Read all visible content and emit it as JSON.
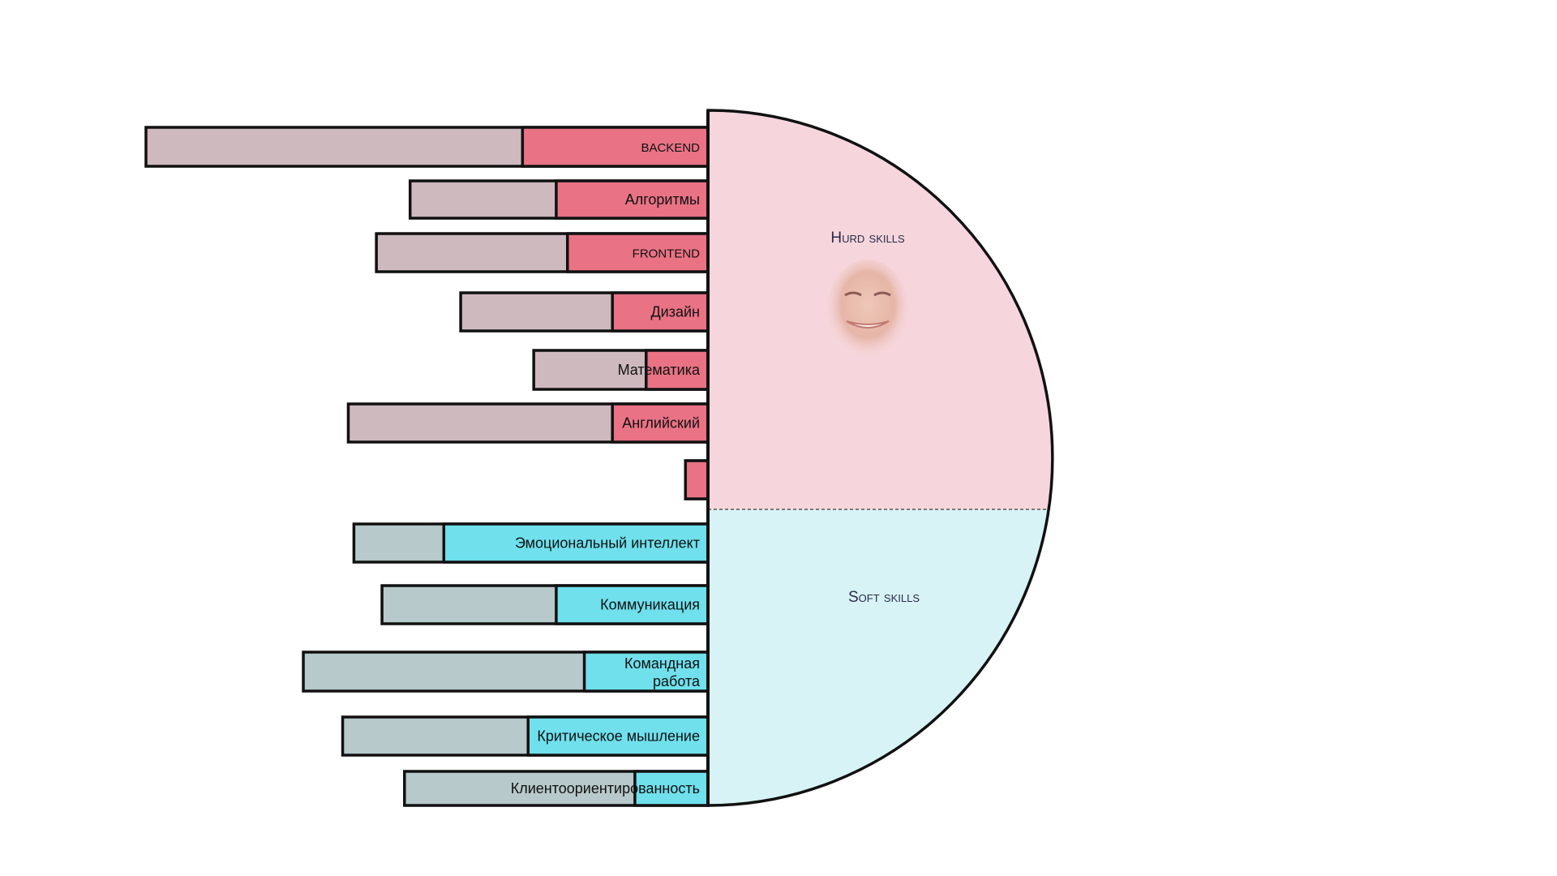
{
  "colors": {
    "hard_fill": "#e97285",
    "hard_track": "#cdb9be",
    "hard_area": "#f6d6dc",
    "soft_fill": "#6fe0ec",
    "soft_track": "#b7c9ca",
    "soft_area": "#d7f3f5",
    "outline": "#111111",
    "divider": "#555555"
  },
  "sections": {
    "hard": {
      "title": "Hurd skills"
    },
    "soft": {
      "title": "Soft skills"
    }
  },
  "avatar": {
    "icon": "smiling-face-photo"
  },
  "chart_data": {
    "type": "bar",
    "orientation": "horizontal",
    "series": [
      {
        "name": "Hurd skills",
        "items": [
          {
            "label": "BACKEND",
            "value": 0.33,
            "total": 1.0
          },
          {
            "label": "Алгоритмы",
            "value": 0.27,
            "total": 0.53
          },
          {
            "label": "FRONTEND",
            "value": 0.25,
            "total": 0.59
          },
          {
            "label": "Дизайн",
            "value": 0.17,
            "total": 0.44
          },
          {
            "label": "Математика",
            "value": 0.11,
            "total": 0.31
          },
          {
            "label": "Английский",
            "value": 0.17,
            "total": 0.64
          },
          {
            "label": "",
            "value": 0.04,
            "total": 0.04
          }
        ]
      },
      {
        "name": "Soft skills",
        "items": [
          {
            "label": "Эмоциональный интеллект",
            "value": 0.47,
            "total": 0.63
          },
          {
            "label": "Коммуникация",
            "value": 0.27,
            "total": 0.58
          },
          {
            "label": "Командная работа",
            "value": 0.22,
            "total": 0.72
          },
          {
            "label": "Критическое мышление",
            "value": 0.32,
            "total": 0.65
          },
          {
            "label": "Клиентоориентированность",
            "value": 0.13,
            "total": 0.54
          }
        ]
      }
    ]
  }
}
